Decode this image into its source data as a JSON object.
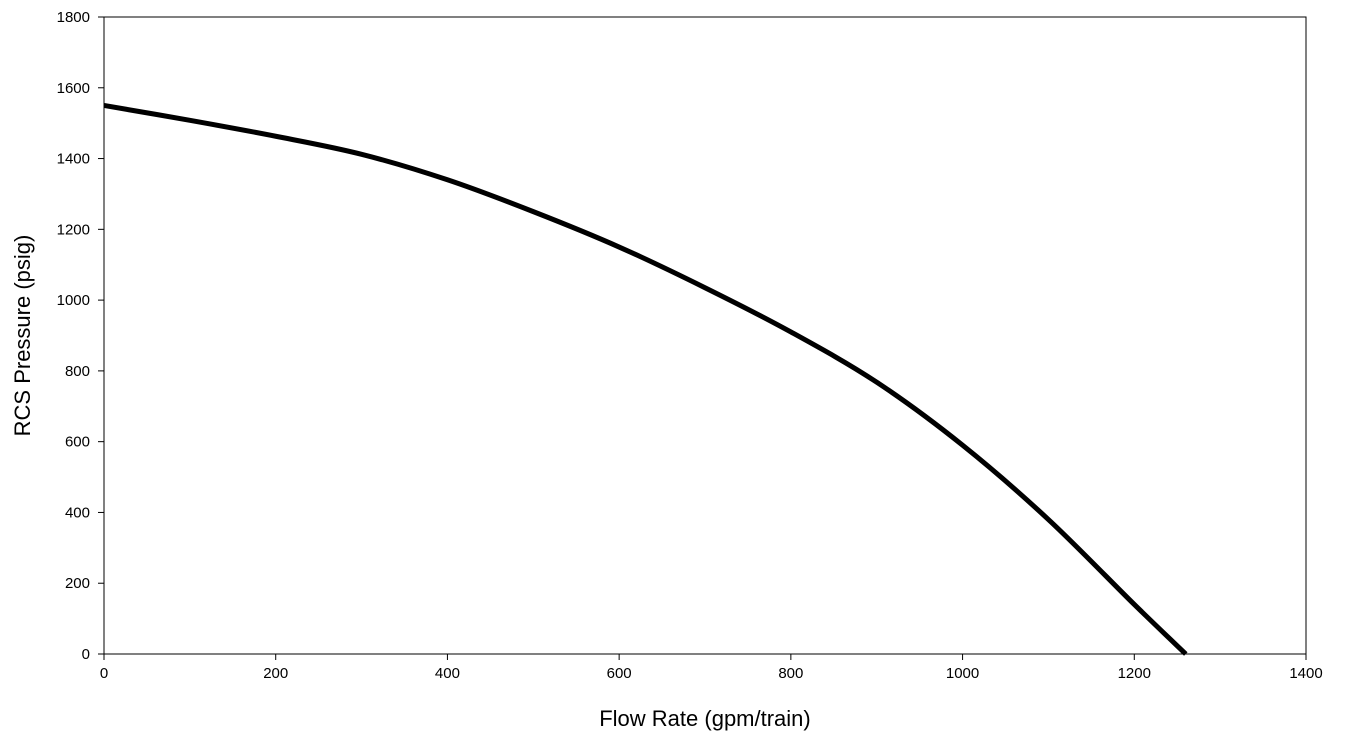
{
  "chart_data": {
    "type": "line",
    "title": "",
    "xlabel": "Flow Rate (gpm/train)",
    "ylabel": "RCS Pressure (psig)",
    "xlim": [
      0,
      1400
    ],
    "ylim": [
      0,
      1800
    ],
    "xticks": [
      0,
      200,
      400,
      600,
      800,
      1000,
      1200,
      1400
    ],
    "yticks": [
      0,
      200,
      400,
      600,
      800,
      1000,
      1200,
      1400,
      1600,
      1800
    ],
    "grid": false,
    "legend": "none",
    "series": [
      {
        "color": "#000000",
        "x": [
          0,
          100,
          200,
          300,
          400,
          500,
          600,
          700,
          800,
          900,
          1000,
          1100,
          1200,
          1260
        ],
        "y": [
          1550,
          1508,
          1463,
          1412,
          1340,
          1250,
          1150,
          1035,
          910,
          768,
          590,
          380,
          140,
          0
        ]
      }
    ]
  }
}
